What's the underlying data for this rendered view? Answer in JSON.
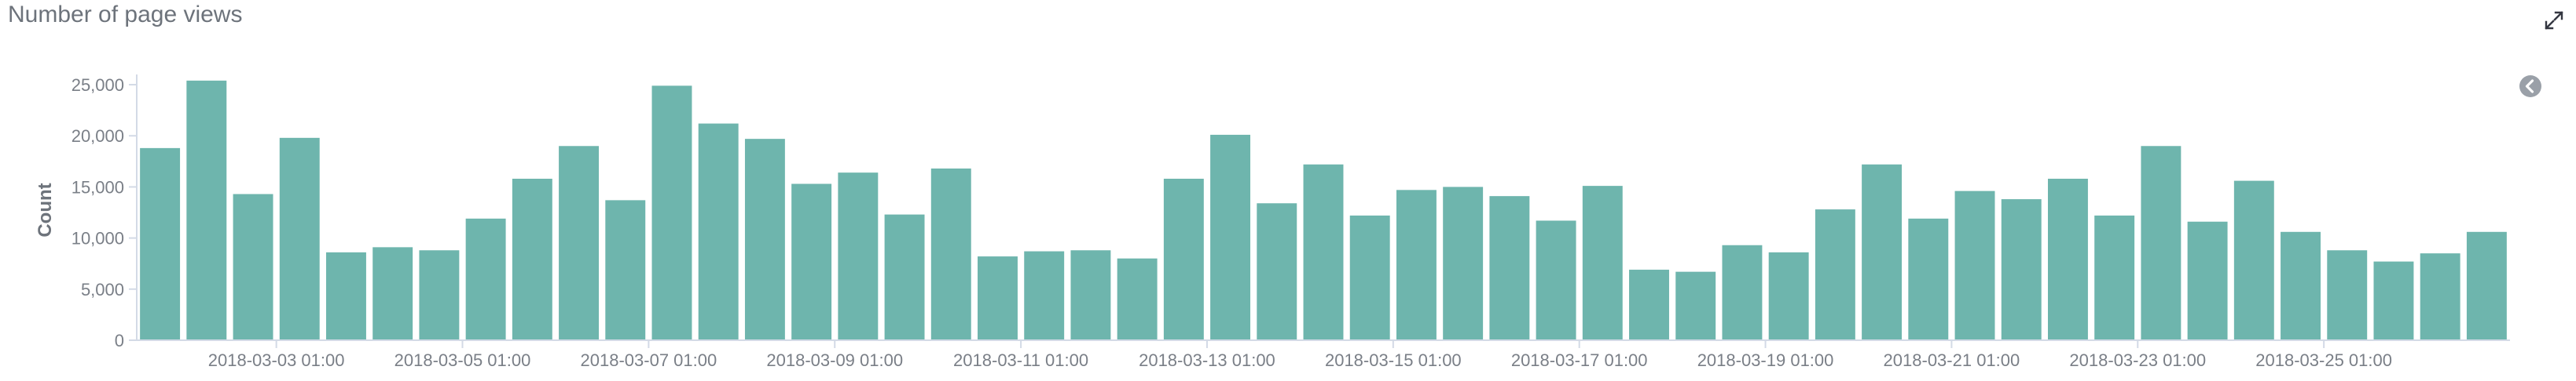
{
  "panel": {
    "title": "Number of page views",
    "expand_icon": "expand-arrows-icon",
    "legend_toggle_icon": "chevron-left-circle-icon"
  },
  "colors": {
    "bar": "#6eb5ad",
    "axis": "#d3dae6",
    "text": "#7a7f87"
  },
  "chart_data": {
    "type": "bar",
    "title": "Number of page views",
    "xlabel": "",
    "ylabel": "Count",
    "ylim": [
      0,
      26000
    ],
    "yticks": [
      0,
      5000,
      10000,
      15000,
      20000,
      25000
    ],
    "ytick_labels": [
      "0",
      "5,000",
      "10,000",
      "15,000",
      "20,000",
      "25,000"
    ],
    "xtick_labels": [
      {
        "label": "2018-03-03 01:00",
        "index": 3
      },
      {
        "label": "2018-03-05 01:00",
        "index": 7
      },
      {
        "label": "2018-03-07 01:00",
        "index": 11
      },
      {
        "label": "2018-03-09 01:00",
        "index": 15
      },
      {
        "label": "2018-03-11 01:00",
        "index": 19
      },
      {
        "label": "2018-03-13 01:00",
        "index": 23
      },
      {
        "label": "2018-03-15 01:00",
        "index": 27
      },
      {
        "label": "2018-03-17 01:00",
        "index": 31
      },
      {
        "label": "2018-03-19 01:00",
        "index": 35
      },
      {
        "label": "2018-03-21 01:00",
        "index": 39
      },
      {
        "label": "2018-03-23 01:00",
        "index": 43
      },
      {
        "label": "2018-03-25 01:00",
        "index": 47
      }
    ],
    "values": [
      18800,
      25400,
      14300,
      19800,
      8600,
      9100,
      8800,
      11900,
      15800,
      19000,
      13700,
      24900,
      21200,
      19700,
      15300,
      16400,
      12300,
      16800,
      8200,
      8700,
      8800,
      8000,
      15800,
      20100,
      13400,
      17200,
      12200,
      14700,
      15000,
      14100,
      11700,
      15100,
      6900,
      6700,
      9300,
      8600,
      12800,
      17200,
      11900,
      14600,
      13800,
      15800,
      12200,
      19000,
      11600,
      15600,
      10600,
      8800,
      7700,
      8500,
      10600
    ],
    "grid": false,
    "legend": "collapsed-right"
  }
}
